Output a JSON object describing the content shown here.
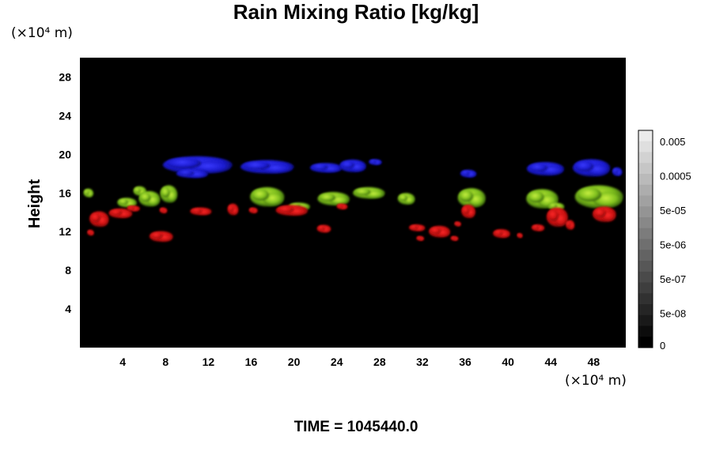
{
  "chart_data": {
    "type": "heatmap",
    "title": "Rain Mixing Ratio [kg/kg]",
    "ylabel": "Height",
    "xlabel": "",
    "y_unit": "(×10⁴ m)",
    "x_unit": "(×10⁴ m)",
    "footer": "TIME = 1045440.0",
    "xlim": [
      0,
      51
    ],
    "ylim": [
      0,
      30
    ],
    "x_ticks": [
      4,
      8,
      12,
      16,
      20,
      24,
      28,
      32,
      36,
      40,
      44,
      48
    ],
    "y_ticks": [
      4,
      8,
      12,
      16,
      20,
      24,
      28
    ],
    "colorbar_labels": [
      "0.005",
      "0.0005",
      "5e-05",
      "5e-06",
      "5e-07",
      "5e-08",
      "0"
    ],
    "colors": {
      "background": "#000000",
      "upper_layer": "#1a1acc",
      "middle_layer": "#7fc01e",
      "lower_layer": "#c81010"
    },
    "grid": false,
    "series": [
      {
        "color": "#1a1acc",
        "blobs": [
          {
            "x": 11.0,
            "y": 18.9,
            "w": 6.5,
            "h": 1.8
          },
          {
            "x": 10.5,
            "y": 18.0,
            "w": 3.0,
            "h": 0.9
          },
          {
            "x": 17.5,
            "y": 18.7,
            "w": 5.0,
            "h": 1.4
          },
          {
            "x": 23.0,
            "y": 18.6,
            "w": 3.0,
            "h": 1.0
          },
          {
            "x": 25.5,
            "y": 18.8,
            "w": 2.5,
            "h": 1.3
          },
          {
            "x": 27.6,
            "y": 19.2,
            "w": 1.2,
            "h": 0.6
          },
          {
            "x": 36.3,
            "y": 18.0,
            "w": 1.5,
            "h": 0.8
          },
          {
            "x": 43.5,
            "y": 18.5,
            "w": 3.5,
            "h": 1.4
          },
          {
            "x": 47.8,
            "y": 18.6,
            "w": 3.5,
            "h": 1.8
          },
          {
            "x": 50.2,
            "y": 18.2,
            "w": 0.9,
            "h": 0.9
          }
        ]
      },
      {
        "color": "#7fc01e",
        "blobs": [
          {
            "x": 0.8,
            "y": 16.0,
            "w": 0.9,
            "h": 0.9
          },
          {
            "x": 4.4,
            "y": 15.0,
            "w": 1.8,
            "h": 1.0
          },
          {
            "x": 5.6,
            "y": 16.2,
            "w": 1.2,
            "h": 1.0
          },
          {
            "x": 6.5,
            "y": 15.4,
            "w": 2.0,
            "h": 1.6
          },
          {
            "x": 8.3,
            "y": 15.9,
            "w": 1.6,
            "h": 1.8
          },
          {
            "x": 17.5,
            "y": 15.6,
            "w": 3.2,
            "h": 2.0
          },
          {
            "x": 20.5,
            "y": 14.6,
            "w": 2.0,
            "h": 0.8
          },
          {
            "x": 23.7,
            "y": 15.4,
            "w": 3.0,
            "h": 1.4
          },
          {
            "x": 27.0,
            "y": 16.0,
            "w": 3.0,
            "h": 1.2
          },
          {
            "x": 30.5,
            "y": 15.4,
            "w": 1.6,
            "h": 1.2
          },
          {
            "x": 36.6,
            "y": 15.5,
            "w": 2.6,
            "h": 2.0
          },
          {
            "x": 43.2,
            "y": 15.4,
            "w": 3.0,
            "h": 2.0
          },
          {
            "x": 48.5,
            "y": 15.6,
            "w": 4.5,
            "h": 2.4
          },
          {
            "x": 44.5,
            "y": 14.6,
            "w": 1.5,
            "h": 0.8
          }
        ]
      },
      {
        "color": "#c81010",
        "blobs": [
          {
            "x": 1.8,
            "y": 13.3,
            "w": 1.8,
            "h": 1.6
          },
          {
            "x": 3.8,
            "y": 13.9,
            "w": 2.2,
            "h": 1.0
          },
          {
            "x": 1.0,
            "y": 11.9,
            "w": 0.6,
            "h": 0.6
          },
          {
            "x": 5.0,
            "y": 14.4,
            "w": 1.2,
            "h": 0.6
          },
          {
            "x": 7.6,
            "y": 11.5,
            "w": 2.2,
            "h": 1.1
          },
          {
            "x": 7.8,
            "y": 14.2,
            "w": 0.7,
            "h": 0.6
          },
          {
            "x": 11.3,
            "y": 14.1,
            "w": 2.0,
            "h": 0.8
          },
          {
            "x": 14.3,
            "y": 14.3,
            "w": 1.0,
            "h": 1.2
          },
          {
            "x": 16.2,
            "y": 14.2,
            "w": 0.8,
            "h": 0.6
          },
          {
            "x": 19.8,
            "y": 14.2,
            "w": 3.0,
            "h": 1.1
          },
          {
            "x": 22.8,
            "y": 12.3,
            "w": 1.3,
            "h": 0.8
          },
          {
            "x": 24.5,
            "y": 14.6,
            "w": 1.0,
            "h": 0.6
          },
          {
            "x": 31.5,
            "y": 12.4,
            "w": 1.5,
            "h": 0.7
          },
          {
            "x": 31.8,
            "y": 11.3,
            "w": 0.7,
            "h": 0.5
          },
          {
            "x": 33.6,
            "y": 12.0,
            "w": 2.0,
            "h": 1.2
          },
          {
            "x": 35.0,
            "y": 11.3,
            "w": 0.7,
            "h": 0.5
          },
          {
            "x": 36.3,
            "y": 14.1,
            "w": 1.3,
            "h": 1.4
          },
          {
            "x": 39.4,
            "y": 11.8,
            "w": 1.6,
            "h": 0.9
          },
          {
            "x": 41.1,
            "y": 11.6,
            "w": 0.5,
            "h": 0.5
          },
          {
            "x": 42.8,
            "y": 12.4,
            "w": 1.2,
            "h": 0.7
          },
          {
            "x": 44.6,
            "y": 13.5,
            "w": 2.0,
            "h": 2.0
          },
          {
            "x": 45.8,
            "y": 12.7,
            "w": 0.8,
            "h": 1.0
          },
          {
            "x": 49.0,
            "y": 13.8,
            "w": 2.2,
            "h": 1.6
          },
          {
            "x": 35.3,
            "y": 12.8,
            "w": 0.6,
            "h": 0.5
          }
        ]
      }
    ]
  }
}
